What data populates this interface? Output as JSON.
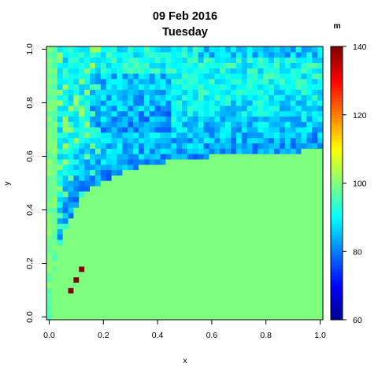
{
  "chart_data": {
    "type": "heatmap",
    "title": "09 Feb 2016",
    "subtitle": "Tuesday",
    "xlabel": "x",
    "ylabel": "y",
    "xlim": [
      0,
      1
    ],
    "ylim": [
      0,
      1
    ],
    "x_ticks": [
      "0.0",
      "0.2",
      "0.4",
      "0.6",
      "0.8",
      "1.0"
    ],
    "y_ticks": [
      "0.0",
      "0.2",
      "0.4",
      "0.6",
      "0.8",
      "1.0"
    ],
    "grid": false,
    "legend": {
      "placement": "right",
      "unit": "m",
      "range": [
        60,
        140
      ],
      "ticks": [
        "60",
        "80",
        "100",
        "120",
        "140"
      ],
      "colors": [
        "#00008f",
        "#0000ff",
        "#007fff",
        "#00ffff",
        "#7fff7f",
        "#ffff00",
        "#ff7f00",
        "#ff0000",
        "#7f0000"
      ]
    },
    "grid_resolution": 50,
    "background_value": 100,
    "masked_region": "y < 0.66 * x / (x + 0.06)",
    "hot_cells": [
      {
        "x": 0.12,
        "y": 0.18,
        "value": 140
      },
      {
        "x": 0.1,
        "y": 0.14,
        "value": 140
      },
      {
        "x": 0.08,
        "y": 0.1,
        "value": 140
      }
    ]
  }
}
